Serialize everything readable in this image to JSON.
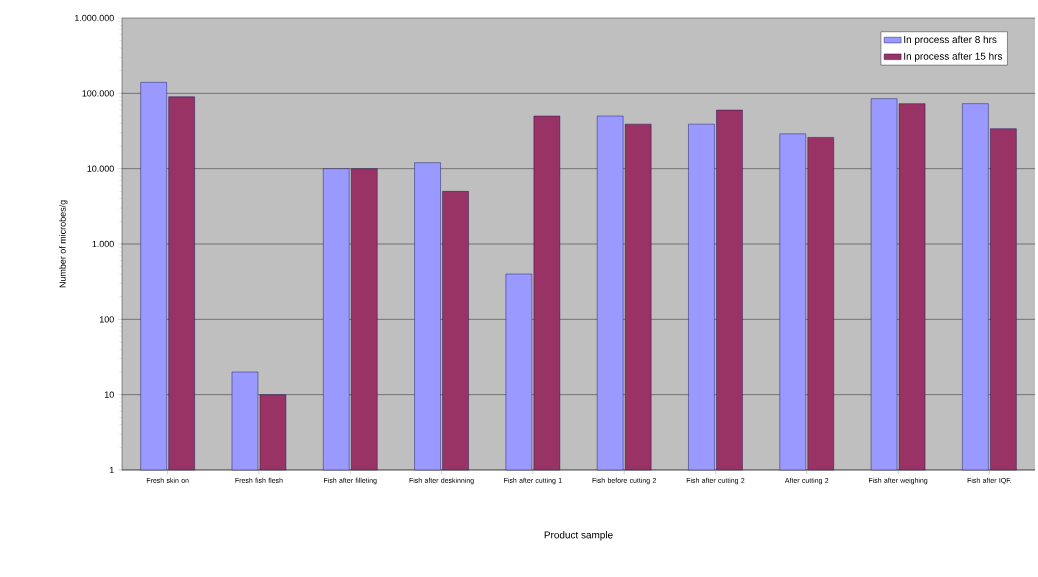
{
  "chart_data": {
    "type": "bar",
    "xlabel": "Product sample",
    "ylabel": "Number of microbes/g",
    "categories": [
      "Fresh skin on",
      "Fresh fish flesh",
      "Fish after filleting",
      "Fish after deskinning",
      "Fish after cutting 1",
      "Fish before cutting 2",
      "Fish after cutting 2",
      "After cutting 2",
      "Fish after weighing",
      "Fish after IQF."
    ],
    "series": [
      {
        "name": "In process after 8 hrs",
        "color": "#9999ff",
        "values": [
          140000,
          20,
          10000,
          12000,
          400,
          50000,
          39000,
          29000,
          85000,
          73000
        ]
      },
      {
        "name": "In process after 15 hrs",
        "color": "#993366",
        "values": [
          90000,
          10,
          10000,
          5000,
          50000,
          39000,
          60000,
          26000,
          73000,
          34000
        ]
      }
    ],
    "log": "y",
    "ylim": [
      1,
      1000000
    ],
    "yticks": [
      1,
      10,
      100,
      {
        "value": 1000,
        "label": "1.000"
      },
      {
        "value": 10000,
        "label": "10.000"
      },
      {
        "value": 100000,
        "label": "100.000"
      },
      {
        "value": 1000000,
        "label": "1.000.000"
      }
    ],
    "grid": "y",
    "legend": "top right"
  }
}
